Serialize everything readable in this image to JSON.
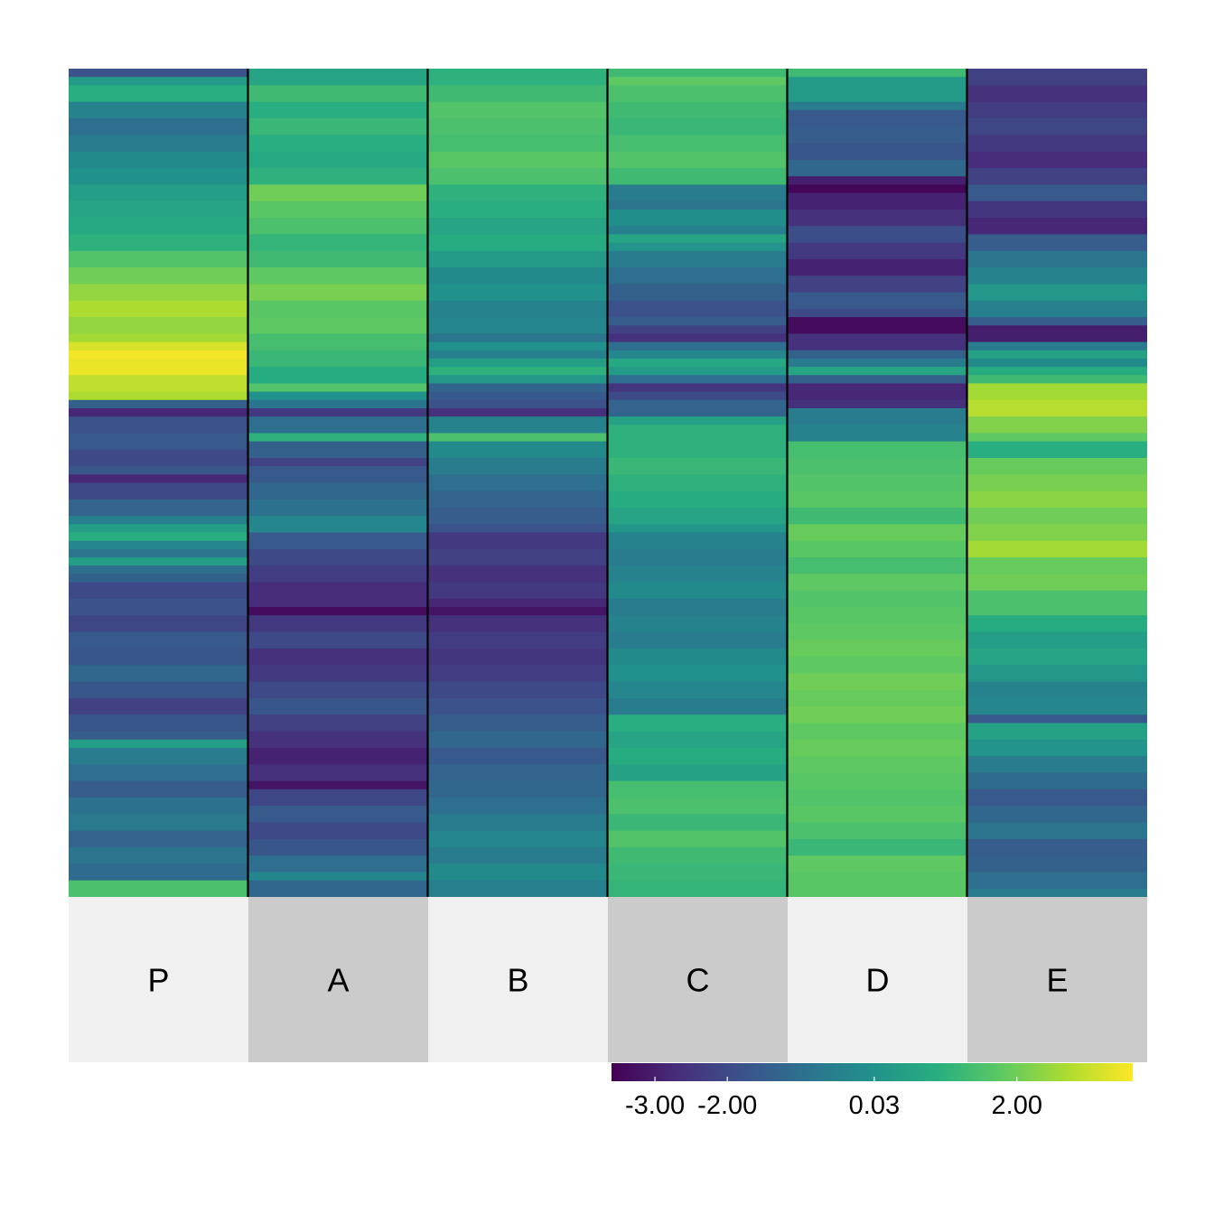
{
  "chart_data": {
    "type": "heatmap",
    "columns": [
      "P",
      "A",
      "B",
      "C",
      "D",
      "E"
    ],
    "n_rows": 100,
    "color_scale": {
      "name": "viridis",
      "min": -3.6,
      "max": 3.6,
      "ticks": [
        -3.0,
        -2.0,
        0.03,
        2.0
      ],
      "tick_labels": [
        "-3.00",
        "-2.00",
        "0.03",
        "2.00"
      ]
    },
    "annotation_colors": [
      "#f0f0f0",
      "#cbcbcb"
    ],
    "columns_values": {
      "P": [
        [
          0,
          -1.8
        ],
        [
          1,
          0.3
        ],
        [
          2,
          0.9
        ],
        [
          4,
          -0.4
        ],
        [
          6,
          -1.0
        ],
        [
          8,
          -0.6
        ],
        [
          10,
          -0.2
        ],
        [
          12,
          0.0
        ],
        [
          14,
          0.4
        ],
        [
          16,
          0.6
        ],
        [
          18,
          0.7
        ],
        [
          20,
          1.0
        ],
        [
          22,
          1.6
        ],
        [
          24,
          2.0
        ],
        [
          26,
          2.4
        ],
        [
          28,
          2.7
        ],
        [
          30,
          2.4
        ],
        [
          32,
          2.6
        ],
        [
          33,
          3.2
        ],
        [
          34,
          3.5
        ],
        [
          35,
          3.4
        ],
        [
          37,
          2.9
        ],
        [
          39,
          2.7
        ],
        [
          40,
          -1.4
        ],
        [
          41,
          -2.8
        ],
        [
          42,
          -1.8
        ],
        [
          44,
          -1.6
        ],
        [
          46,
          -2.0
        ],
        [
          48,
          -1.7
        ],
        [
          49,
          -2.8
        ],
        [
          50,
          -2.0
        ],
        [
          52,
          -1.3
        ],
        [
          54,
          -0.5
        ],
        [
          55,
          0.4
        ],
        [
          56,
          0.9
        ],
        [
          57,
          -0.3
        ],
        [
          58,
          -0.8
        ],
        [
          59,
          0.4
        ],
        [
          60,
          -1.0
        ],
        [
          61,
          -1.4
        ],
        [
          62,
          -2.0
        ],
        [
          64,
          -1.8
        ],
        [
          66,
          -2.1
        ],
        [
          68,
          -1.6
        ],
        [
          70,
          -1.7
        ],
        [
          72,
          -1.2
        ],
        [
          74,
          -1.7
        ],
        [
          76,
          -2.2
        ],
        [
          78,
          -1.7
        ],
        [
          80,
          -1.5
        ],
        [
          81,
          0.4
        ],
        [
          82,
          -0.6
        ],
        [
          84,
          -1.0
        ],
        [
          86,
          -1.5
        ],
        [
          88,
          -0.9
        ],
        [
          90,
          -0.7
        ],
        [
          92,
          -1.3
        ],
        [
          94,
          -0.8
        ],
        [
          96,
          -1.1
        ],
        [
          98,
          1.5
        ]
      ],
      "A": [
        [
          0,
          0.6
        ],
        [
          2,
          1.3
        ],
        [
          4,
          0.9
        ],
        [
          6,
          1.2
        ],
        [
          8,
          0.9
        ],
        [
          10,
          0.7
        ],
        [
          12,
          1.0
        ],
        [
          14,
          2.0
        ],
        [
          16,
          1.7
        ],
        [
          18,
          1.5
        ],
        [
          20,
          1.1
        ],
        [
          22,
          1.3
        ],
        [
          24,
          1.8
        ],
        [
          26,
          2.1
        ],
        [
          28,
          1.7
        ],
        [
          30,
          1.8
        ],
        [
          32,
          1.4
        ],
        [
          34,
          1.2
        ],
        [
          36,
          0.8
        ],
        [
          38,
          1.6
        ],
        [
          39,
          0.0
        ],
        [
          40,
          -0.8
        ],
        [
          41,
          -2.4
        ],
        [
          42,
          -1.0
        ],
        [
          44,
          1.0
        ],
        [
          45,
          -1.4
        ],
        [
          47,
          -2.2
        ],
        [
          48,
          -1.6
        ],
        [
          50,
          -1.2
        ],
        [
          52,
          -0.9
        ],
        [
          54,
          -0.3
        ],
        [
          56,
          -1.6
        ],
        [
          58,
          -2.0
        ],
        [
          60,
          -2.3
        ],
        [
          62,
          -2.7
        ],
        [
          65,
          -3.4
        ],
        [
          66,
          -2.4
        ],
        [
          68,
          -2.0
        ],
        [
          70,
          -2.6
        ],
        [
          72,
          -2.4
        ],
        [
          74,
          -2.0
        ],
        [
          76,
          -1.7
        ],
        [
          78,
          -2.2
        ],
        [
          80,
          -2.6
        ],
        [
          82,
          -2.9
        ],
        [
          84,
          -2.6
        ],
        [
          86,
          -3.2
        ],
        [
          87,
          -2.1
        ],
        [
          89,
          -1.6
        ],
        [
          91,
          -2.0
        ],
        [
          93,
          -1.7
        ],
        [
          95,
          -1.0
        ],
        [
          97,
          -0.3
        ],
        [
          98,
          -1.2
        ]
      ],
      "B": [
        [
          0,
          1.0
        ],
        [
          2,
          1.3
        ],
        [
          4,
          1.6
        ],
        [
          6,
          1.5
        ],
        [
          8,
          1.4
        ],
        [
          10,
          1.7
        ],
        [
          12,
          1.5
        ],
        [
          14,
          1.0
        ],
        [
          16,
          0.9
        ],
        [
          18,
          0.6
        ],
        [
          20,
          0.8
        ],
        [
          22,
          0.3
        ],
        [
          24,
          -0.2
        ],
        [
          26,
          0.0
        ],
        [
          28,
          -0.4
        ],
        [
          30,
          -0.3
        ],
        [
          32,
          -0.8
        ],
        [
          33,
          0.0
        ],
        [
          34,
          -0.5
        ],
        [
          35,
          0.4
        ],
        [
          36,
          1.0
        ],
        [
          37,
          0.2
        ],
        [
          38,
          -1.3
        ],
        [
          39,
          -1.6
        ],
        [
          40,
          -1.8
        ],
        [
          41,
          -2.6
        ],
        [
          42,
          -0.4
        ],
        [
          44,
          1.5
        ],
        [
          45,
          -0.2
        ],
        [
          47,
          -0.6
        ],
        [
          49,
          -1.0
        ],
        [
          51,
          -1.3
        ],
        [
          53,
          -1.5
        ],
        [
          55,
          -1.8
        ],
        [
          56,
          -2.4
        ],
        [
          58,
          -2.2
        ],
        [
          60,
          -2.6
        ],
        [
          62,
          -2.4
        ],
        [
          64,
          -2.8
        ],
        [
          65,
          -3.2
        ],
        [
          66,
          -2.6
        ],
        [
          68,
          -2.3
        ],
        [
          70,
          -2.5
        ],
        [
          72,
          -2.3
        ],
        [
          74,
          -2.0
        ],
        [
          76,
          -1.8
        ],
        [
          78,
          -1.5
        ],
        [
          80,
          -1.2
        ],
        [
          82,
          -1.6
        ],
        [
          84,
          -1.3
        ],
        [
          86,
          -1.2
        ],
        [
          88,
          -1.0
        ],
        [
          90,
          -0.6
        ],
        [
          92,
          -0.3
        ],
        [
          94,
          -0.6
        ],
        [
          96,
          -0.2
        ],
        [
          98,
          -0.5
        ]
      ],
      "C": [
        [
          0,
          1.3
        ],
        [
          1,
          1.8
        ],
        [
          2,
          1.5
        ],
        [
          4,
          1.3
        ],
        [
          6,
          1.2
        ],
        [
          8,
          1.4
        ],
        [
          10,
          1.6
        ],
        [
          12,
          1.3
        ],
        [
          14,
          -0.6
        ],
        [
          16,
          -0.8
        ],
        [
          17,
          -0.1
        ],
        [
          19,
          -0.5
        ],
        [
          20,
          0.6
        ],
        [
          21,
          0.1
        ],
        [
          22,
          -0.6
        ],
        [
          24,
          -1.0
        ],
        [
          26,
          -1.4
        ],
        [
          28,
          -1.8
        ],
        [
          30,
          -1.5
        ],
        [
          31,
          -2.2
        ],
        [
          32,
          -2.6
        ],
        [
          33,
          -1.0
        ],
        [
          34,
          -0.3
        ],
        [
          35,
          0.7
        ],
        [
          36,
          0.3
        ],
        [
          37,
          -1.0
        ],
        [
          38,
          -2.5
        ],
        [
          39,
          -2.0
        ],
        [
          40,
          -1.3
        ],
        [
          42,
          0.5
        ],
        [
          43,
          1.0
        ],
        [
          45,
          1.0
        ],
        [
          47,
          1.2
        ],
        [
          49,
          1.0
        ],
        [
          51,
          0.8
        ],
        [
          53,
          0.6
        ],
        [
          55,
          0.2
        ],
        [
          56,
          -0.4
        ],
        [
          58,
          -0.6
        ],
        [
          60,
          -0.4
        ],
        [
          62,
          -0.2
        ],
        [
          64,
          -0.6
        ],
        [
          66,
          -0.4
        ],
        [
          68,
          -0.6
        ],
        [
          70,
          -0.2
        ],
        [
          72,
          0.0
        ],
        [
          74,
          -0.3
        ],
        [
          76,
          -0.6
        ],
        [
          78,
          0.9
        ],
        [
          80,
          0.6
        ],
        [
          82,
          0.8
        ],
        [
          84,
          0.5
        ],
        [
          86,
          1.4
        ],
        [
          88,
          1.5
        ],
        [
          90,
          1.2
        ],
        [
          92,
          1.6
        ],
        [
          94,
          1.3
        ],
        [
          96,
          1.2
        ],
        [
          98,
          1.1
        ]
      ],
      "D": [
        [
          0,
          1.3
        ],
        [
          1,
          0.3
        ],
        [
          4,
          -0.6
        ],
        [
          5,
          -1.6
        ],
        [
          7,
          -1.5
        ],
        [
          9,
          -1.7
        ],
        [
          11,
          -1.2
        ],
        [
          13,
          -3.0
        ],
        [
          14,
          -3.5
        ],
        [
          15,
          -2.9
        ],
        [
          17,
          -2.6
        ],
        [
          19,
          -1.9
        ],
        [
          21,
          -2.4
        ],
        [
          23,
          -2.9
        ],
        [
          25,
          -2.2
        ],
        [
          27,
          -1.6
        ],
        [
          29,
          -2.0
        ],
        [
          30,
          -3.4
        ],
        [
          32,
          -2.6
        ],
        [
          34,
          -1.4
        ],
        [
          35,
          -0.6
        ],
        [
          36,
          0.6
        ],
        [
          37,
          -1.4
        ],
        [
          38,
          -2.8
        ],
        [
          40,
          -2.6
        ],
        [
          41,
          -0.6
        ],
        [
          43,
          -0.4
        ],
        [
          45,
          1.4
        ],
        [
          47,
          1.5
        ],
        [
          49,
          1.6
        ],
        [
          51,
          1.7
        ],
        [
          53,
          1.3
        ],
        [
          55,
          1.9
        ],
        [
          57,
          1.7
        ],
        [
          59,
          1.4
        ],
        [
          61,
          1.8
        ],
        [
          63,
          1.6
        ],
        [
          65,
          1.7
        ],
        [
          67,
          1.8
        ],
        [
          69,
          1.9
        ],
        [
          71,
          1.8
        ],
        [
          73,
          2.0
        ],
        [
          75,
          1.9
        ],
        [
          77,
          2.0
        ],
        [
          79,
          1.8
        ],
        [
          81,
          1.9
        ],
        [
          83,
          1.8
        ],
        [
          85,
          1.7
        ],
        [
          87,
          1.6
        ],
        [
          89,
          1.7
        ],
        [
          91,
          1.5
        ],
        [
          93,
          1.2
        ],
        [
          95,
          1.8
        ],
        [
          97,
          1.7
        ]
      ],
      "E": [
        [
          0,
          -2.2
        ],
        [
          2,
          -2.6
        ],
        [
          4,
          -2.3
        ],
        [
          6,
          -2.1
        ],
        [
          8,
          -2.4
        ],
        [
          10,
          -2.7
        ],
        [
          12,
          -2.2
        ],
        [
          14,
          -1.6
        ],
        [
          16,
          -2.5
        ],
        [
          18,
          -2.8
        ],
        [
          20,
          -1.5
        ],
        [
          22,
          -0.8
        ],
        [
          24,
          -0.4
        ],
        [
          26,
          0.2
        ],
        [
          28,
          -0.5
        ],
        [
          30,
          -1.5
        ],
        [
          31,
          -3.0
        ],
        [
          33,
          -0.6
        ],
        [
          34,
          0.5
        ],
        [
          35,
          -0.2
        ],
        [
          36,
          0.8
        ],
        [
          37,
          1.3
        ],
        [
          38,
          2.6
        ],
        [
          40,
          2.8
        ],
        [
          42,
          2.2
        ],
        [
          44,
          1.8
        ],
        [
          45,
          0.9
        ],
        [
          47,
          1.9
        ],
        [
          49,
          2.1
        ],
        [
          51,
          2.3
        ],
        [
          53,
          2.0
        ],
        [
          55,
          2.2
        ],
        [
          57,
          2.6
        ],
        [
          59,
          1.9
        ],
        [
          61,
          2.0
        ],
        [
          63,
          1.5
        ],
        [
          66,
          0.8
        ],
        [
          68,
          0.4
        ],
        [
          70,
          0.6
        ],
        [
          72,
          0.2
        ],
        [
          74,
          -0.4
        ],
        [
          76,
          -0.3
        ],
        [
          78,
          -1.6
        ],
        [
          79,
          0.5
        ],
        [
          81,
          0.1
        ],
        [
          83,
          -0.6
        ],
        [
          85,
          -1.1
        ],
        [
          87,
          -1.6
        ],
        [
          89,
          -1.2
        ],
        [
          91,
          -0.8
        ],
        [
          93,
          -1.5
        ],
        [
          95,
          -1.4
        ],
        [
          97,
          -1.0
        ],
        [
          99,
          -0.6
        ]
      ]
    }
  }
}
